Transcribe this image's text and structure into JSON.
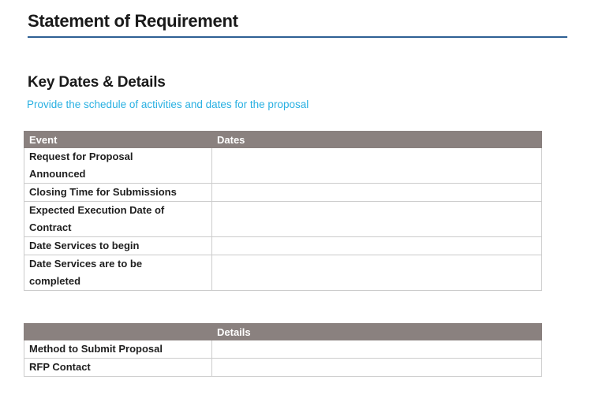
{
  "document": {
    "title": "Statement of Requirement"
  },
  "section": {
    "heading": "Key Dates & Details",
    "subtitle": "Provide the schedule of activities and dates for the proposal"
  },
  "dates_table": {
    "headers": [
      "Event",
      "Dates"
    ],
    "rows": [
      {
        "event": "Request for Proposal\nAnnounced",
        "date": ""
      },
      {
        "event": "Closing Time for Submissions",
        "date": ""
      },
      {
        "event": "Expected Execution Date of\nContract",
        "date": ""
      },
      {
        "event": "Date Services to begin",
        "date": ""
      },
      {
        "event": "Date Services are to be\ncompleted",
        "date": ""
      }
    ]
  },
  "details_table": {
    "headers": [
      "",
      "Details"
    ],
    "rows": [
      {
        "label": "Method to Submit Proposal",
        "value": ""
      },
      {
        "label": "RFP Contact",
        "value": ""
      }
    ]
  },
  "colors": {
    "table_header_bg": "#8a817f",
    "title_rule_blue": "#2e6094",
    "subtitle_cyan": "#29b0e2",
    "table_border": "#cbcbcb"
  }
}
